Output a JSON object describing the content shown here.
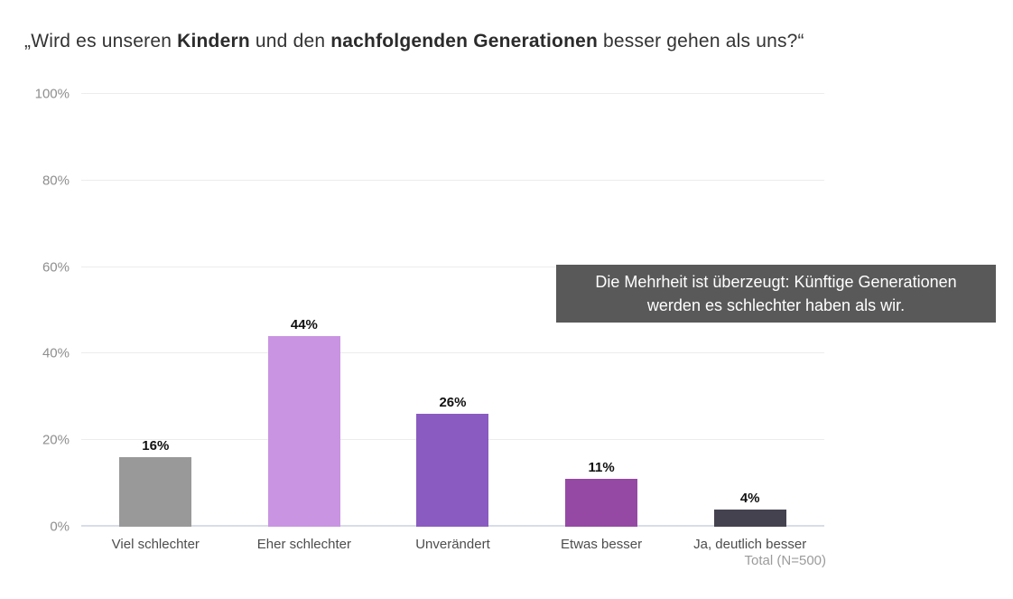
{
  "page": {
    "background": "#ffffff"
  },
  "title": {
    "segments": [
      {
        "text": "„Wird es unseren ",
        "bold": false
      },
      {
        "text": "Kindern",
        "bold": true
      },
      {
        "text": " und den ",
        "bold": false
      },
      {
        "text": "nachfolgenden Generationen",
        "bold": true
      },
      {
        "text": " besser gehen als uns?“",
        "bold": false
      }
    ]
  },
  "chart_data": {
    "type": "bar",
    "categories": [
      "Viel schlechter",
      "Eher schlechter",
      "Unverändert",
      "Etwas besser",
      "Ja, deutlich besser"
    ],
    "values": [
      16,
      44,
      26,
      11,
      4
    ],
    "value_labels": [
      "16%",
      "44%",
      "26%",
      "11%",
      "4%"
    ],
    "bar_colors": [
      "#999999",
      "#c994e2",
      "#8a5bc1",
      "#9549a5",
      "#454250"
    ],
    "title": "„Wird es unseren Kindern und den nachfolgenden Generationen besser gehen als uns?“",
    "xlabel": "",
    "ylabel": "",
    "ylim": [
      0,
      100
    ],
    "grid": true,
    "legend": false,
    "y_ticks": [
      {
        "value": 0,
        "label": "0%"
      },
      {
        "value": 20,
        "label": "20%"
      },
      {
        "value": 40,
        "label": "40%"
      },
      {
        "value": 60,
        "label": "60%"
      },
      {
        "value": 80,
        "label": "80%"
      },
      {
        "value": 100,
        "label": "100%"
      }
    ],
    "annotation": {
      "lines": [
        "Die Mehrheit ist überzeugt: Künftige Generationen",
        "werden es schlechter haben als wir."
      ],
      "background": "#595959",
      "text_color": "#ffffff"
    },
    "footnote": "Total (N=500)"
  },
  "colors": {
    "grid_line": "#ececec",
    "axis_line": "#d9dde9",
    "tick_label": "#8e8e8e",
    "category_label": "#4d4d4d",
    "value_label": "#111111",
    "title_text": "#333333",
    "footnote_text": "#9b9b9b"
  }
}
